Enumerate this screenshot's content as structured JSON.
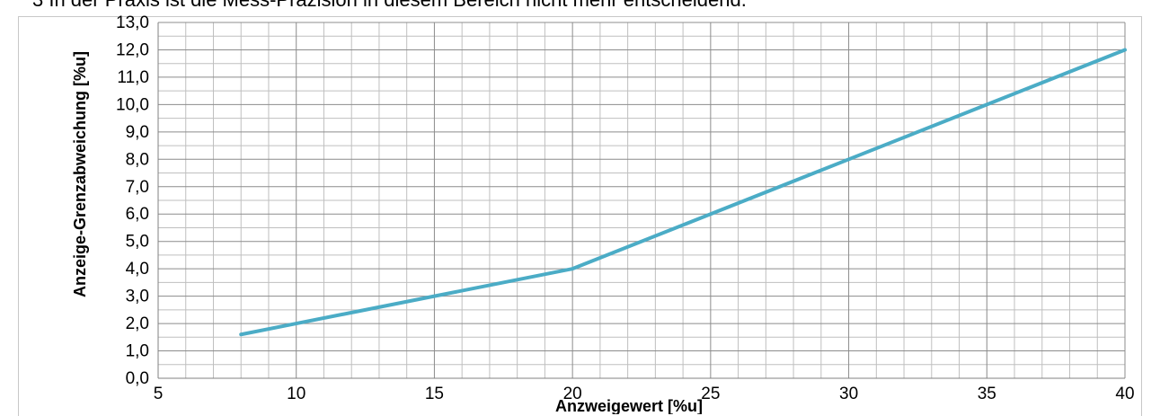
{
  "header_text": "3 In der Praxis ist die Mess-Präzision in diesem Bereich nicht mehr entscheidend.",
  "chart_data": {
    "type": "line",
    "title": "",
    "xlabel": "Anzweigewert [%u]",
    "ylabel": "Anzeige-Grenzabweichung [%u]",
    "xlim": [
      5,
      40
    ],
    "ylim": [
      0,
      13
    ],
    "x_ticks": [
      "5",
      "10",
      "15",
      "20",
      "25",
      "30",
      "35",
      "40"
    ],
    "y_ticks": [
      "0,0",
      "1,0",
      "2,0",
      "3,0",
      "4,0",
      "5,0",
      "6,0",
      "7,0",
      "8,0",
      "9,0",
      "10,0",
      "11,0",
      "12,0",
      "13,0"
    ],
    "grid": true,
    "legend": "none",
    "series": [
      {
        "color": "#4bacc6",
        "x": [
          8,
          10,
          15,
          20,
          25,
          30,
          35,
          40
        ],
        "y": [
          1.6,
          2.0,
          3.0,
          4.0,
          6.0,
          8.0,
          10.0,
          12.0
        ]
      }
    ]
  }
}
